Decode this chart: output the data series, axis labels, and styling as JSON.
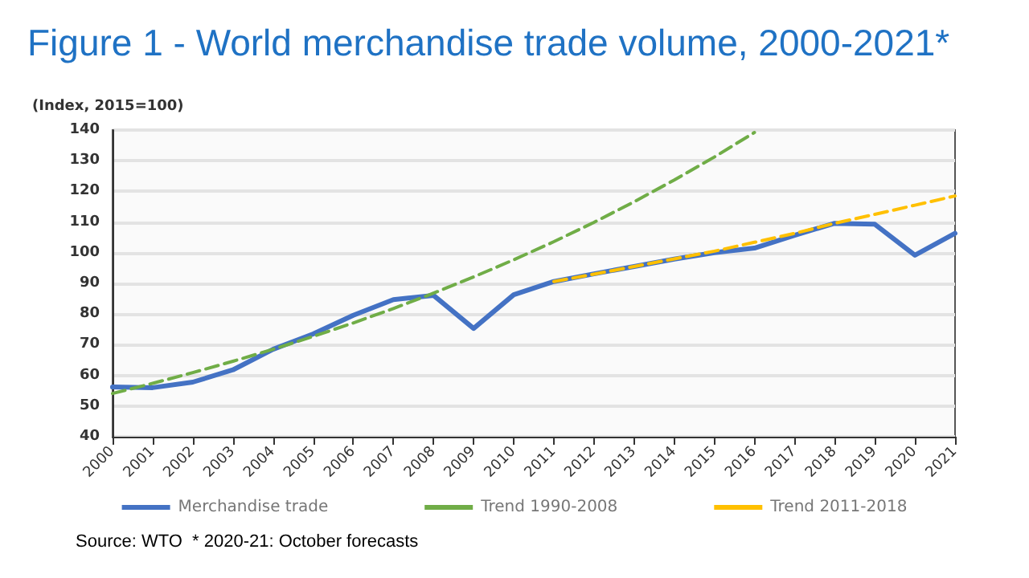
{
  "chart_data": {
    "type": "line",
    "title": "Figure 1 - World merchandise trade volume, 2000-2021*",
    "ylabel": "(Index, 2015=100)",
    "categories": [
      "2000",
      "2001",
      "2002",
      "2003",
      "2004",
      "2005",
      "2006",
      "2007",
      "2008",
      "2009",
      "2010",
      "2011",
      "2012",
      "2013",
      "2014",
      "2015",
      "2016",
      "2017",
      "2018",
      "2019",
      "2020",
      "2021"
    ],
    "series": [
      {
        "name": "Merchandise trade",
        "color": "#4472c4",
        "line_style": "solid",
        "values": [
          56.2,
          56,
          57.8,
          61.8,
          68.5,
          73.5,
          79.6,
          84.7,
          86.1,
          75.3,
          86.3,
          90.6,
          93.1,
          95.5,
          97.9,
          100,
          101.5,
          105.7,
          109.6,
          109.3,
          99.2,
          106.3
        ]
      },
      {
        "name": "Trend 1990-2008",
        "color": "#70ad47",
        "line_style": "dashed",
        "values": [
          54.1,
          57.4,
          60.9,
          64.6,
          68.5,
          72.7,
          77.1,
          81.8,
          86.8,
          92.1,
          97.7,
          103.6,
          109.9,
          116.6,
          123.7,
          131.2,
          139.2,
          null,
          null,
          null,
          null,
          null
        ]
      },
      {
        "name": "Trend 2011-2018",
        "color": "#ffc000",
        "line_style": "dashed",
        "values": [
          null,
          null,
          null,
          null,
          null,
          null,
          null,
          null,
          null,
          null,
          null,
          90.6,
          93,
          95.5,
          98,
          100.5,
          103.4,
          106.3,
          109.6,
          112.5,
          115.5,
          118.5
        ]
      }
    ],
    "ylim": [
      40,
      140
    ],
    "yticks": [
      40,
      50,
      60,
      70,
      80,
      90,
      100,
      110,
      120,
      130,
      140
    ],
    "grid": "y",
    "legend": "bottom",
    "marker": "none",
    "annotations": [
      "Source: WTO  * 2020-21: October forecasts"
    ]
  }
}
